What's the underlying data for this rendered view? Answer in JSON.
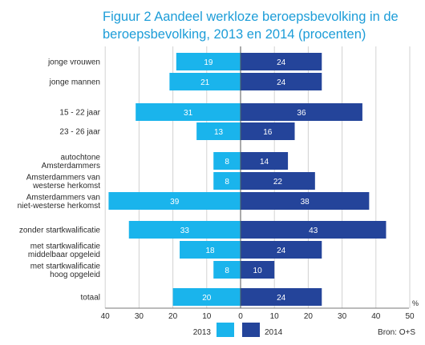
{
  "chart_data": {
    "type": "bar",
    "orientation": "horizontal-diverging",
    "title": "Figuur 2  Aandeel werkloze beroepsbevolking in de beroepsbevolking, 2013 en 2014 (procenten)",
    "title_lines": [
      "Figuur 2  Aandeel werkloze beroepsbevolking in de",
      "beroepsbevolking, 2013 en 2014 (procenten)"
    ],
    "categories": [
      "jonge vrouwen",
      "jonge mannen",
      "15 - 22 jaar",
      "23 - 26 jaar",
      "autochtone Amsterdammers",
      "Amsterdammers van westerse herkomst",
      "Amsterdammers van niet-westerse herkomst",
      "zonder startkwalificatie",
      "met startkwalificatie middelbaar opgeleid",
      "met startkwalificatie hoog opgeleid",
      "totaal"
    ],
    "category_lines": [
      [
        "jonge vrouwen"
      ],
      [
        "jonge mannen"
      ],
      [
        "15 - 22 jaar"
      ],
      [
        "23 - 26 jaar"
      ],
      [
        "autochtone",
        "Amsterdammers"
      ],
      [
        "Amsterdammers van",
        "westerse herkomst"
      ],
      [
        "Amsterdammers van",
        "niet-westerse herkomst"
      ],
      [
        "zonder startkwalificatie"
      ],
      [
        "met startkwalificatie",
        "middelbaar opgeleid"
      ],
      [
        "met startkwalificatie",
        "hoog opgeleid"
      ],
      [
        "totaal"
      ]
    ],
    "series": [
      {
        "name": "2013",
        "color": "#1ab4ec",
        "direction": "left",
        "values": [
          19,
          21,
          31,
          13,
          8,
          8,
          39,
          33,
          18,
          8,
          20
        ]
      },
      {
        "name": "2014",
        "color": "#24449a",
        "direction": "right",
        "values": [
          24,
          24,
          36,
          16,
          14,
          22,
          38,
          43,
          24,
          10,
          24
        ]
      }
    ],
    "x_ticks": [
      "40",
      "30",
      "20",
      "10",
      "0",
      "10",
      "20",
      "30",
      "40",
      "50"
    ],
    "x_unit": "%",
    "xlim": [
      -40,
      50
    ],
    "grid": true,
    "legend_placement": "bottom-center",
    "source": "Bron: O+S"
  }
}
